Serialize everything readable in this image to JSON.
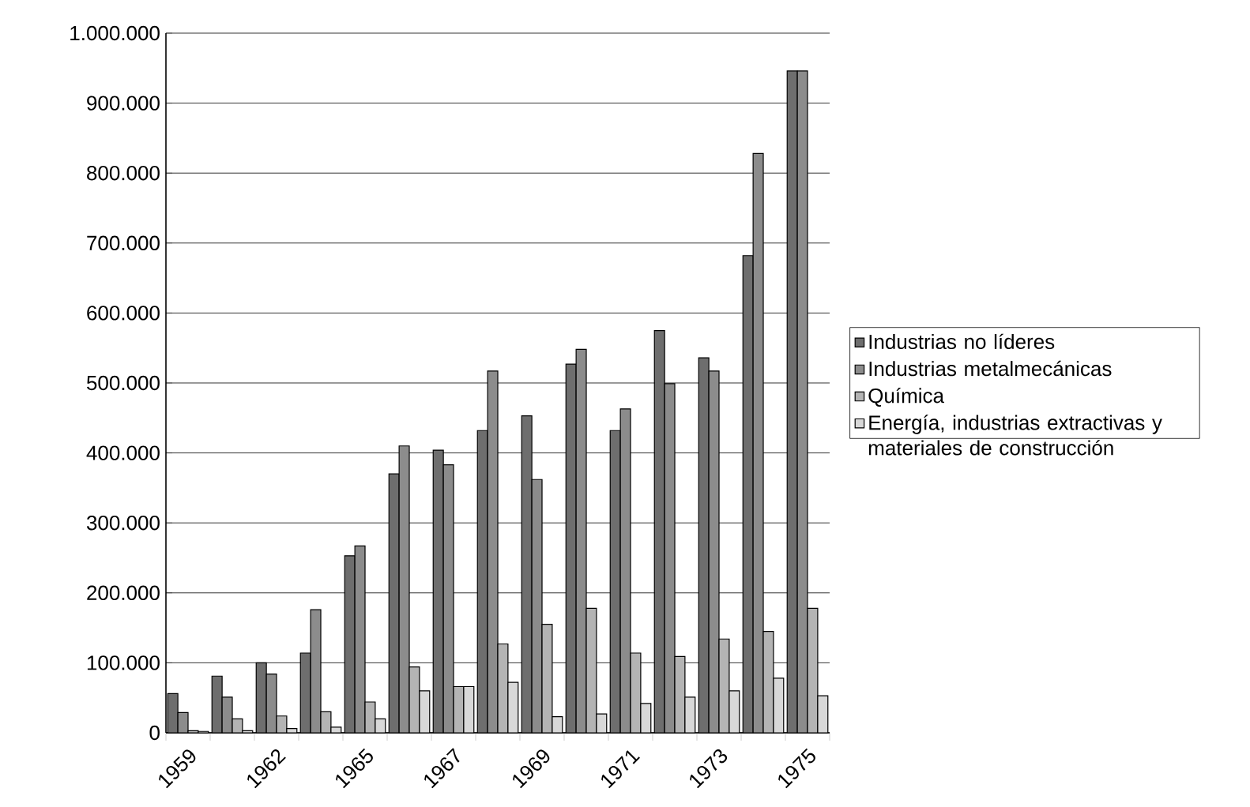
{
  "chart_data": {
    "type": "bar",
    "categories": [
      "1959",
      null,
      "1962",
      null,
      "1965",
      null,
      "1967",
      null,
      "1969",
      null,
      "1971",
      null,
      "1973",
      null,
      "1975"
    ],
    "series": [
      {
        "name": "Industrias no líderes",
        "color": "#6e6e6e",
        "values": [
          56000,
          81000,
          100000,
          114000,
          253000,
          370000,
          404000,
          432000,
          453000,
          527000,
          432000,
          575000,
          536000,
          682000,
          946000
        ]
      },
      {
        "name": "Industrias metalmecánicas",
        "color": "#8c8c8c",
        "values": [
          29000,
          51000,
          84000,
          176000,
          267000,
          410000,
          383000,
          517000,
          362000,
          548000,
          463000,
          499000,
          517000,
          828000,
          946000
        ]
      },
      {
        "name": "Química",
        "color": "#b4b4b4",
        "values": [
          3000,
          20000,
          24000,
          30000,
          44000,
          94000,
          66000,
          127000,
          155000,
          178000,
          114000,
          109000,
          134000,
          145000,
          178000
        ]
      },
      {
        "name": "Energía, industrias extractivas y materiales de construcción",
        "color": "#d8d8d8",
        "values": [
          2000,
          3000,
          6000,
          8000,
          20000,
          60000,
          66000,
          72000,
          23000,
          27000,
          42000,
          51000,
          60000,
          78000,
          53000
        ]
      }
    ],
    "ylim": [
      0,
      1000000
    ],
    "yticks": [
      0,
      {
        "value": 100000,
        "label": "100.000"
      },
      {
        "value": 200000,
        "label": "200.000"
      },
      {
        "value": 300000,
        "label": "300.000"
      },
      {
        "value": 400000,
        "label": "400.000"
      },
      {
        "value": 500000,
        "label": "500.000"
      },
      {
        "value": 600000,
        "label": "600.000"
      },
      {
        "value": 700000,
        "label": "700.000"
      },
      {
        "value": 800000,
        "label": "800.000"
      },
      {
        "value": 900000,
        "label": "900.000"
      },
      {
        "value": 1000000,
        "label": "1.000.000"
      }
    ],
    "grid": "y",
    "legend": "right"
  }
}
